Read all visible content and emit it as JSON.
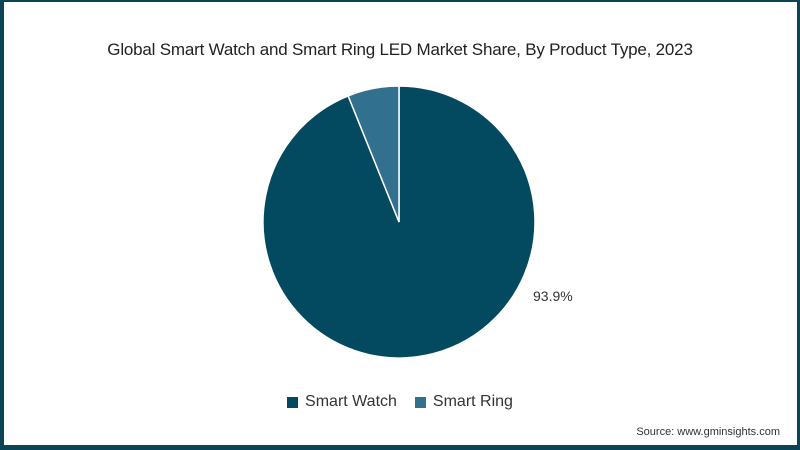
{
  "title": "Global Smart Watch and Smart Ring LED Market Share, By Product Type, 2023",
  "source": "Source: www.gminsights.com",
  "colors": {
    "smart_watch": "#034a60",
    "smart_ring": "#32708f",
    "border": "#0b4457"
  },
  "labels": {
    "smart_watch_pct": "93.9%"
  },
  "legend": [
    {
      "label": "Smart Watch",
      "color": "#034a60"
    },
    {
      "label": "Smart Ring",
      "color": "#32708f"
    }
  ],
  "chart_data": {
    "type": "pie",
    "title": "Global Smart Watch and Smart Ring LED Market Share, By Product Type, 2023",
    "categories": [
      "Smart Watch",
      "Smart Ring"
    ],
    "values": [
      93.9,
      6.1
    ],
    "unit": "%",
    "data_labels": [
      "93.9%",
      ""
    ],
    "legend_position": "bottom",
    "colors": [
      "#034a60",
      "#32708f"
    ],
    "source": "www.gminsights.com"
  }
}
